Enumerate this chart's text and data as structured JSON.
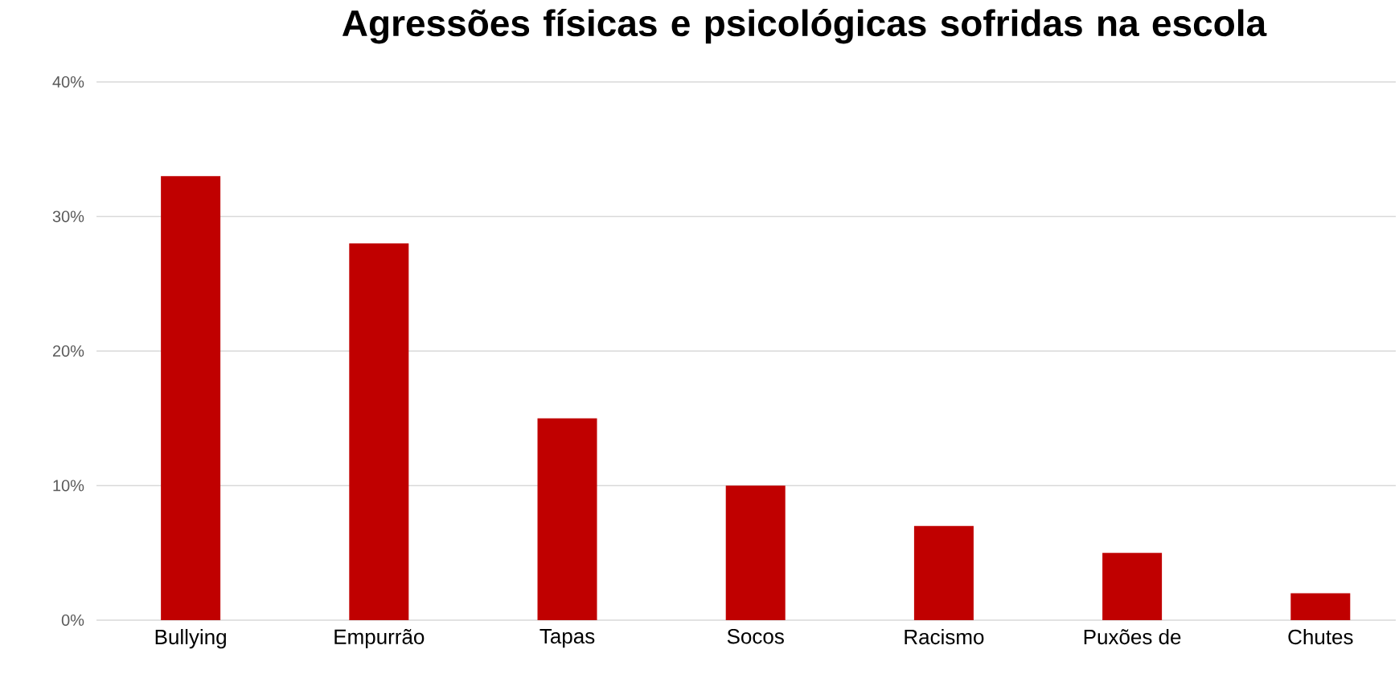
{
  "chart_data": {
    "type": "bar",
    "title": "Agressões físicas e psicológicas sofridas na escola",
    "categories": [
      "Bullying",
      "Empurrão",
      "Tapas",
      "Socos",
      "Racismo",
      "Puxões de",
      "Chutes"
    ],
    "values": [
      33,
      28,
      15,
      10,
      7,
      5,
      2
    ],
    "color": "#c00000",
    "ylim": [
      0,
      40
    ],
    "yticks": [
      {
        "value": 0,
        "label": "0%"
      },
      {
        "value": 10,
        "label": "10%"
      },
      {
        "value": 20,
        "label": "20%"
      },
      {
        "value": 30,
        "label": "30%"
      },
      {
        "value": 40,
        "label": "40%"
      }
    ],
    "grid": "y"
  }
}
